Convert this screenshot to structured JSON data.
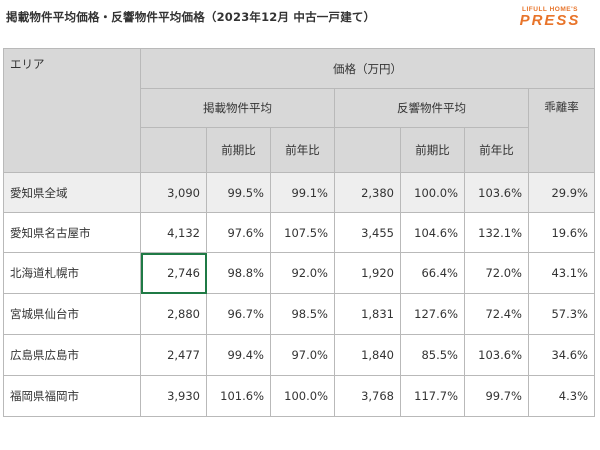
{
  "title": "掲載物件平均価格・反響物件平均価格（2023年12月 中古一戸建て）",
  "logo": {
    "small": "LIFULL HOME'S",
    "big": "PRESS"
  },
  "header": {
    "area": "エリア",
    "price": "価格（万円）",
    "listing_avg": "掲載物件平均",
    "response_avg": "反響物件平均",
    "divergence": "乖離率",
    "qoq": "前期比",
    "yoy": "前年比"
  },
  "rows": [
    {
      "area": "愛知県全域",
      "listing": "3,090",
      "listing_qoq": "99.5%",
      "listing_yoy": "99.1%",
      "response": "2,380",
      "response_qoq": "100.0%",
      "response_yoy": "103.6%",
      "divergence": "29.9%"
    },
    {
      "area": "愛知県名古屋市",
      "listing": "4,132",
      "listing_qoq": "97.6%",
      "listing_yoy": "107.5%",
      "response": "3,455",
      "response_qoq": "104.6%",
      "response_yoy": "132.1%",
      "divergence": "19.6%"
    },
    {
      "area": "北海道札幌市",
      "listing": "2,746",
      "listing_qoq": "98.8%",
      "listing_yoy": "92.0%",
      "response": "1,920",
      "response_qoq": "66.4%",
      "response_yoy": "72.0%",
      "divergence": "43.1%"
    },
    {
      "area": "宮城県仙台市",
      "listing": "2,880",
      "listing_qoq": "96.7%",
      "listing_yoy": "98.5%",
      "response": "1,831",
      "response_qoq": "127.6%",
      "response_yoy": "72.4%",
      "divergence": "57.3%"
    },
    {
      "area": "広島県広島市",
      "listing": "2,477",
      "listing_qoq": "99.4%",
      "listing_yoy": "97.0%",
      "response": "1,840",
      "response_qoq": "85.5%",
      "response_yoy": "103.6%",
      "divergence": "34.6%"
    },
    {
      "area": "福岡県福岡市",
      "listing": "3,930",
      "listing_qoq": "101.6%",
      "listing_yoy": "100.0%",
      "response": "3,768",
      "response_qoq": "117.7%",
      "response_yoy": "99.7%",
      "divergence": "4.3%"
    }
  ],
  "colors": {
    "header_bg": "#d8d8d8",
    "shaded_row": "#eeeeee",
    "border": "#b9b9b9",
    "selection": "#1f7a45",
    "logo": "#e8742a"
  }
}
